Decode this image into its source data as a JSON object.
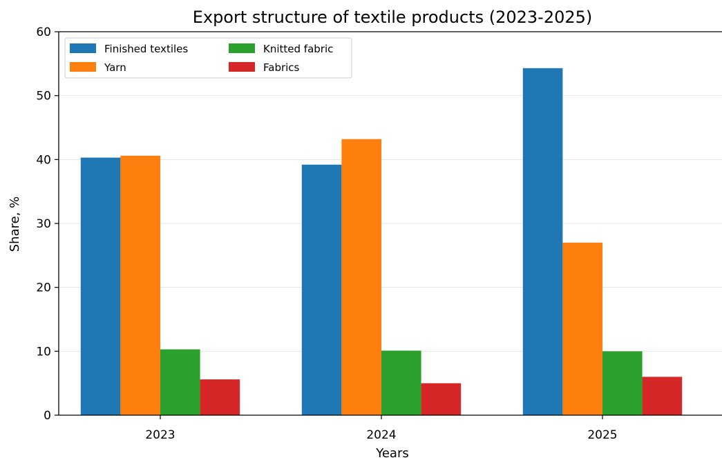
{
  "chart_data": {
    "type": "bar",
    "title": "Export structure of textile products (2023-2025)",
    "xlabel": "Years",
    "ylabel": "Share, %",
    "categories": [
      "2023",
      "2024",
      "2025"
    ],
    "ylim": [
      0,
      60
    ],
    "yticks": [
      "0",
      "10",
      "20",
      "30",
      "40",
      "50",
      "60"
    ],
    "grid": "y",
    "legend_position": "top-left",
    "series": [
      {
        "name": "Finished textiles",
        "color": "#1f77b4",
        "values": [
          40.3,
          39.2,
          54.3
        ]
      },
      {
        "name": "Yarn",
        "color": "#ff7f0e",
        "values": [
          40.6,
          43.2,
          27.0
        ]
      },
      {
        "name": "Knitted fabric",
        "color": "#2ca02c",
        "values": [
          10.3,
          10.1,
          10.0
        ]
      },
      {
        "name": "Fabrics",
        "color": "#d62728",
        "values": [
          5.6,
          5.0,
          6.0
        ]
      }
    ]
  }
}
